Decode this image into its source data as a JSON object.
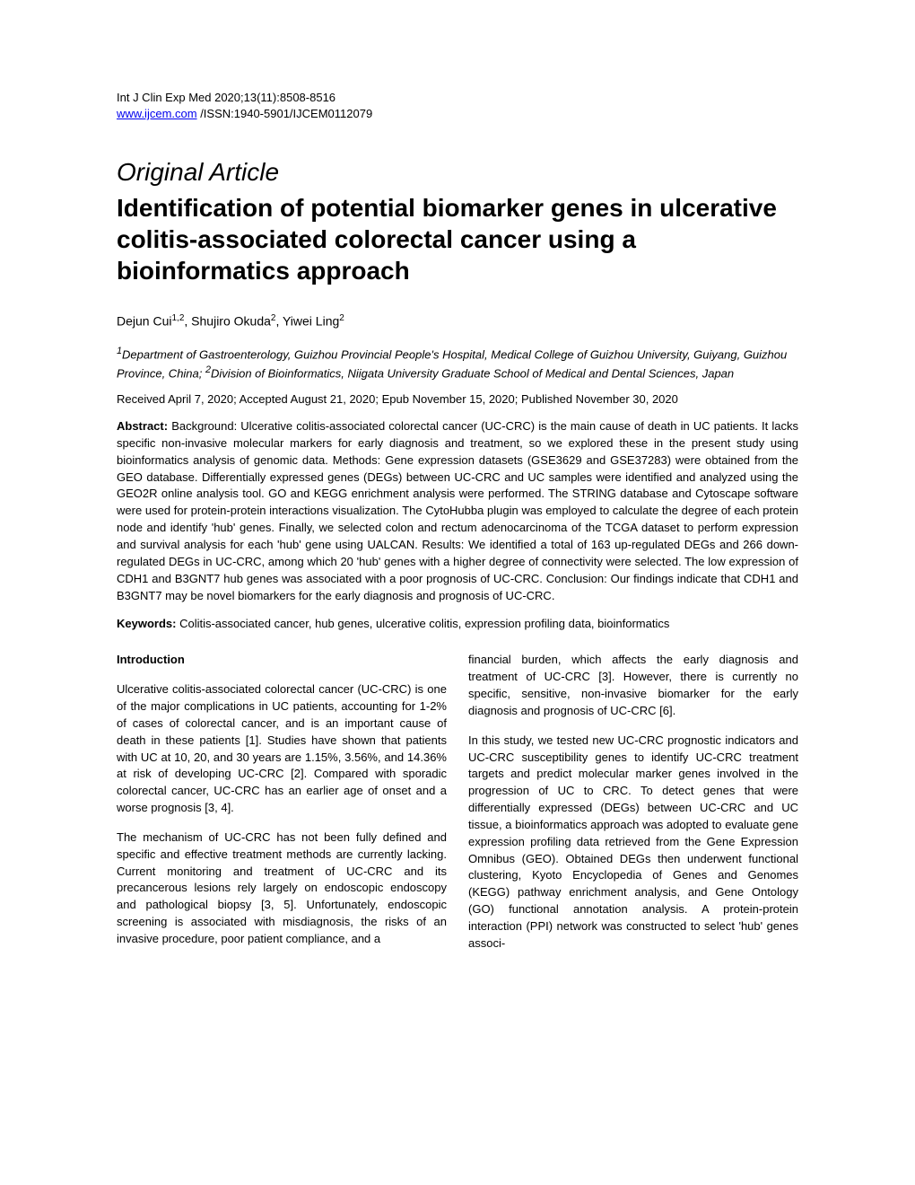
{
  "header": {
    "journal_citation": "Int J Clin Exp Med 2020;13(11):8508-8516",
    "journal_url": "www.ijcem.com",
    "issn_info": " /ISSN:1940-5901/IJCEM0112079"
  },
  "article": {
    "type": "Original Article",
    "title": "Identification of potential biomarker genes in ulcerative colitis-associated colorectal cancer using a bioinformatics approach",
    "authors_html": "Dejun Cui<sup>1,2</sup>, Shujiro Okuda<sup>2</sup>, Yiwei Ling<sup>2</sup>",
    "affiliations_html": "<sup>1</sup>Department of Gastroenterology, Guizhou Provincial People's Hospital, Medical College of Guizhou University, Guiyang, Guizhou Province, China; <sup>2</sup>Division of Bioinformatics, Niigata University Graduate School of Medical and Dental Sciences, Japan",
    "dates": "Received April 7, 2020; Accepted August 21, 2020; Epub November 15, 2020; Published November 30, 2020"
  },
  "abstract": {
    "label": "Abstract: ",
    "text": "Background: Ulcerative colitis-associated colorectal cancer (UC-CRC) is the main cause of death in UC patients. It lacks specific non-invasive molecular markers for early diagnosis and treatment, so we explored these in the present study using bioinformatics analysis of genomic data. Methods: Gene expression datasets (GSE3629 and GSE37283) were obtained from the GEO database. Differentially expressed genes (DEGs) between UC-CRC and UC samples were identified and analyzed using the GEO2R online analysis tool. GO and KEGG enrichment analysis were performed. The STRING database and Cytoscape software were used for protein-protein interactions visualization. The CytoHubba plugin was employed to calculate the degree of each protein node and identify 'hub' genes. Finally, we selected colon and rectum adenocarcinoma of the TCGA dataset to perform expression and survival analysis for each 'hub' gene using UALCAN. Results: We identified a total of 163 up-regulated DEGs and 266 down-regulated DEGs in UC-CRC, among which 20 'hub' genes with a higher degree of connectivity were selected. The low expression of CDH1 and B3GNT7 hub genes was associated with a poor prognosis of UC-CRC. Conclusion: Our findings indicate that CDH1 and B3GNT7 may be novel biomarkers for the early diagnosis and prognosis of UC-CRC."
  },
  "keywords": {
    "label": "Keywords: ",
    "text": "Colitis-associated cancer, hub genes, ulcerative colitis, expression profiling data, bioinformatics"
  },
  "body": {
    "introduction_heading": "Introduction",
    "left_column": {
      "para1": "Ulcerative colitis-associated colorectal cancer (UC-CRC) is one of the major complications in UC patients, accounting for 1-2% of cases of colorectal cancer, and is an important cause of death in these patients [1]. Studies have shown that patients with UC at 10, 20, and 30 years are 1.15%, 3.56%, and 14.36% at risk of developing UC-CRC [2]. Compared with sporadic colorectal cancer, UC-CRC has an earlier age of onset and a worse prognosis [3, 4].",
      "para2": "The mechanism of UC-CRC has not been fully defined and specific and effective treatment methods are currently lacking. Current monitoring and treatment of UC-CRC and its precancerous lesions rely largely on endoscopic endoscopy and pathological biopsy [3, 5]. Unfortunately, endoscopic screening is associated with misdiagnosis, the risks of an invasive procedure, poor patient compliance, and a"
    },
    "right_column": {
      "para1": "financial burden, which affects the early diagnosis and treatment of UC-CRC [3]. However, there is currently no specific, sensitive, non-invasive biomarker for the early diagnosis and prognosis of UC-CRC [6].",
      "para2": "In this study, we tested new UC-CRC prognostic indicators and UC-CRC susceptibility genes to identify UC-CRC treatment targets and predict molecular marker genes involved in the progression of UC to CRC. To detect genes that were differentially expressed (DEGs) between UC-CRC and UC tissue, a bioinformatics approach was adopted to evaluate gene expression profiling data retrieved from the Gene Expression Omnibus (GEO). Obtained DEGs then underwent functional clustering, Kyoto Encyclopedia of Genes and Genomes (KEGG) pathway enrichment analysis, and Gene Ontology (GO) functional annotation analysis. A protein-protein interaction (PPI) network was constructed to select 'hub' genes associ-"
    }
  }
}
